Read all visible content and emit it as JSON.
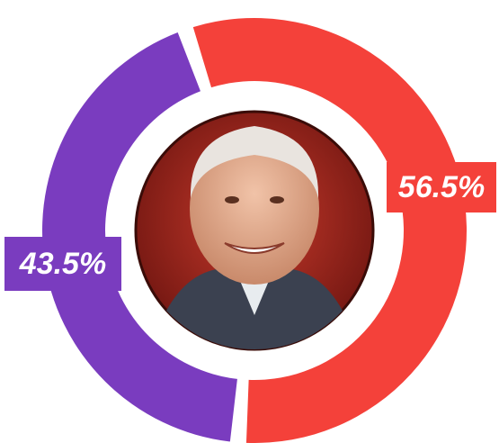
{
  "chart_data": {
    "type": "donut",
    "values": [
      56.5,
      43.5
    ],
    "value_labels": [
      "56.5%",
      "43.5%"
    ],
    "colors": [
      "#f4413a",
      "#7a3cbf"
    ]
  }
}
